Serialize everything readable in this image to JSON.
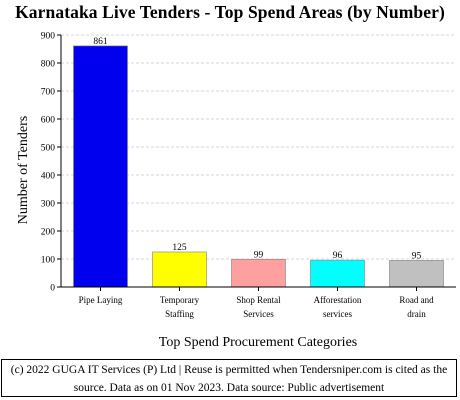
{
  "chart_data": {
    "type": "bar",
    "title": "Karnataka Live Tenders - Top Spend Areas (by Number)",
    "xlabel": "Top Spend Procurement Categories",
    "ylabel": "Number of Tenders",
    "ylim": [
      0,
      900
    ],
    "yticks": [
      "0",
      "100",
      "200",
      "300",
      "400",
      "500",
      "600",
      "700",
      "800",
      "900"
    ],
    "grid": true,
    "categories": [
      [
        "Pipe Laying"
      ],
      [
        "Temporary",
        "Staffing"
      ],
      [
        "Shop Rental",
        "Services"
      ],
      [
        "Afforestation",
        "services"
      ],
      [
        "Road and",
        "drain"
      ]
    ],
    "values": [
      861,
      125,
      99,
      96,
      95
    ],
    "colors": [
      "#0000ee",
      "#ffff00",
      "#ffa0a0",
      "#00ffff",
      "#c0c0c0"
    ]
  },
  "footer": {
    "line1": "(c) 2022 GUGA IT Services (P) Ltd | Reuse is permitted when Tendersniper.com is cited as the",
    "line2": "source. Data as on 01 Nov 2023. Data source: Public advertisement"
  }
}
